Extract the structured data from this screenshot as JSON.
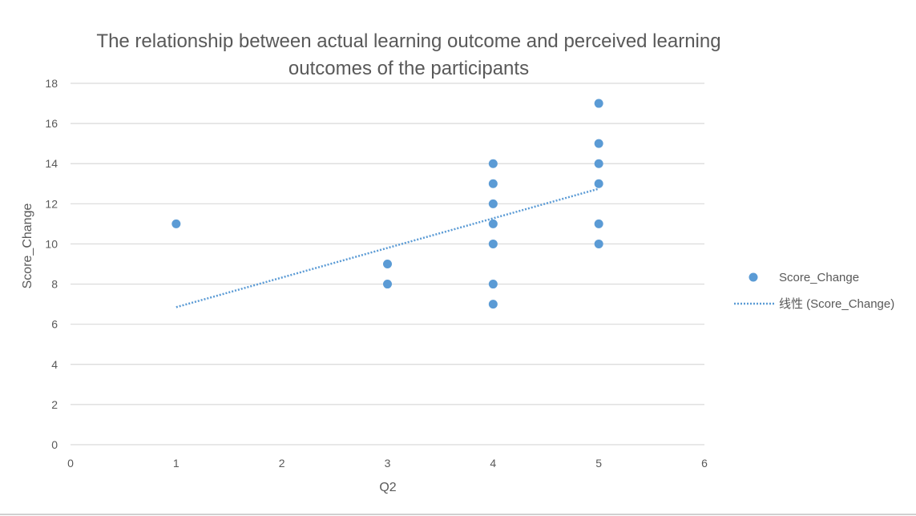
{
  "chart_data": {
    "type": "scatter",
    "title_lines": [
      "The relationship between actual learning outcome and perceived learning",
      "outcomes of the participants"
    ],
    "xlabel": "Q2",
    "ylabel": "Score_Change",
    "xlim": [
      0,
      6
    ],
    "ylim": [
      0,
      18
    ],
    "x_ticks": [
      "0",
      "1",
      "2",
      "3",
      "4",
      "5",
      "6"
    ],
    "y_ticks": [
      "0",
      "2",
      "4",
      "6",
      "8",
      "10",
      "12",
      "14",
      "16",
      "18"
    ],
    "grid": true,
    "legend_position": "right",
    "series": [
      {
        "name": "Score_Change",
        "color": "#5b9bd5",
        "points": [
          {
            "x": 1,
            "y": 11
          },
          {
            "x": 3,
            "y": 9
          },
          {
            "x": 3,
            "y": 8
          },
          {
            "x": 4,
            "y": 14
          },
          {
            "x": 4,
            "y": 13
          },
          {
            "x": 4,
            "y": 12
          },
          {
            "x": 4,
            "y": 11
          },
          {
            "x": 4,
            "y": 10
          },
          {
            "x": 4,
            "y": 8
          },
          {
            "x": 4,
            "y": 7
          },
          {
            "x": 5,
            "y": 17
          },
          {
            "x": 5,
            "y": 15
          },
          {
            "x": 5,
            "y": 14
          },
          {
            "x": 5,
            "y": 13
          },
          {
            "x": 5,
            "y": 11
          },
          {
            "x": 5,
            "y": 10
          }
        ]
      }
    ],
    "trendline": {
      "name": "线性 (Score_Change)",
      "type": "linear",
      "color": "#5b9bd5",
      "from": {
        "x": 1,
        "y": 6.85
      },
      "to": {
        "x": 5,
        "y": 12.75
      }
    }
  }
}
